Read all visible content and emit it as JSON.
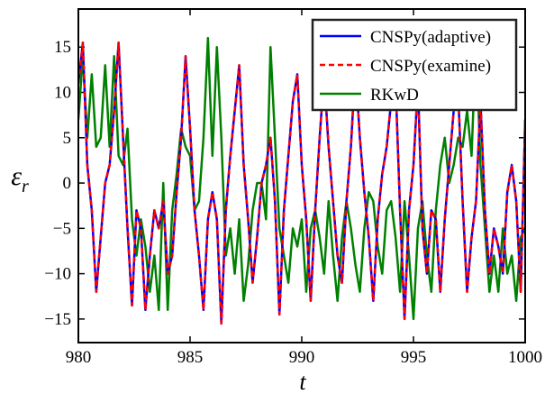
{
  "chart_data": {
    "type": "line",
    "xlabel": "t",
    "ylabel": "ε",
    "ylabel_sub": "r",
    "x": [
      980,
      980.2,
      980.4,
      980.6,
      980.8,
      981,
      981.2,
      981.4,
      981.6,
      981.8,
      982,
      982.2,
      982.4,
      982.6,
      982.8,
      983,
      983.2,
      983.4,
      983.6,
      983.8,
      984,
      984.2,
      984.4,
      984.6,
      984.8,
      985,
      985.2,
      985.4,
      985.6,
      985.8,
      986,
      986.2,
      986.4,
      986.6,
      986.8,
      987,
      987.2,
      987.4,
      987.6,
      987.8,
      988,
      988.2,
      988.4,
      988.6,
      988.8,
      989,
      989.2,
      989.4,
      989.6,
      989.8,
      990,
      990.2,
      990.4,
      990.6,
      990.8,
      991,
      991.2,
      991.4,
      991.6,
      991.8,
      992,
      992.2,
      992.4,
      992.6,
      992.8,
      993,
      993.2,
      993.4,
      993.6,
      993.8,
      994,
      994.2,
      994.4,
      994.6,
      994.8,
      995,
      995.2,
      995.4,
      995.6,
      995.8,
      996,
      996.2,
      996.4,
      996.6,
      996.8,
      997,
      997.2,
      997.4,
      997.6,
      997.8,
      998,
      998.2,
      998.4,
      998.6,
      998.8,
      999,
      999.2,
      999.4,
      999.6,
      999.8,
      1000
    ],
    "series": [
      {
        "name": "CNSPy(adaptive)",
        "color": "#0000ff",
        "dash": "none",
        "values": [
          11,
          15.5,
          2,
          -3,
          -12,
          -6,
          0,
          2,
          8,
          15.5,
          5,
          -5,
          -13.5,
          -3,
          -5,
          -14,
          -8,
          -3,
          -5,
          -2,
          -10,
          -8,
          -1,
          5,
          14,
          6,
          -3,
          -8,
          -14,
          -4,
          -1,
          -4,
          -15.5,
          -3,
          3,
          8,
          13,
          2,
          -4,
          -11,
          -6,
          0,
          2,
          5,
          -2,
          -14.5,
          -3,
          3,
          9,
          12,
          2,
          -4,
          -13,
          -3,
          5,
          12,
          4,
          -2,
          -8,
          -11,
          -2,
          4,
          13,
          5,
          -1,
          -6,
          -13,
          -4,
          1,
          4,
          9,
          11,
          -3,
          -15,
          -3,
          2,
          11,
          -5,
          -10,
          -3,
          -4,
          -12,
          -4,
          2,
          8,
          10,
          -2,
          -12,
          -6,
          -2,
          9,
          -3,
          -10,
          -5,
          -7,
          -10,
          -1,
          2,
          -2,
          -12,
          7
        ]
      },
      {
        "name": "CNSPy(examine)",
        "color": "#ff0000",
        "dash": "6,4",
        "values": [
          11,
          15.5,
          2,
          -3,
          -12,
          -6,
          0,
          2,
          8,
          15.5,
          5,
          -5,
          -13.5,
          -3,
          -5,
          -14,
          -8,
          -3,
          -5,
          -2,
          -10,
          -8,
          -1,
          5,
          14,
          6,
          -3,
          -8,
          -14,
          -4,
          -1,
          -4,
          -15.5,
          -3,
          3,
          8,
          13,
          2,
          -4,
          -11,
          -6,
          0,
          2,
          5,
          -2,
          -14.5,
          -3,
          3,
          9,
          12,
          2,
          -4,
          -13,
          -3,
          5,
          12,
          4,
          -2,
          -8,
          -11,
          -2,
          4,
          13,
          5,
          -1,
          -6,
          -13,
          -4,
          1,
          4,
          9,
          11,
          -3,
          -15,
          -3,
          2,
          11,
          -5,
          -10,
          -3,
          -4,
          -12,
          -4,
          2,
          8,
          10,
          -2,
          -12,
          -6,
          -2,
          9,
          -3,
          -10,
          -5,
          -7,
          -10,
          -1,
          2,
          -2,
          -12,
          7
        ]
      },
      {
        "name": "RKwD",
        "color": "#008000",
        "dash": "none",
        "values": [
          7,
          14,
          5,
          12,
          4,
          5,
          13,
          4,
          14,
          3,
          2,
          6,
          -4,
          -8,
          -4,
          -7,
          -12,
          -8,
          -14,
          0,
          -14,
          -3,
          1,
          6,
          4,
          3,
          -3,
          -2,
          5,
          16,
          3,
          15,
          5,
          -8,
          -5,
          -10,
          -4,
          -13,
          -9,
          -3,
          0,
          0,
          -4,
          15,
          5,
          -5,
          -8,
          -11,
          -5,
          -7,
          -4,
          -12,
          -5,
          -3,
          -6,
          -10,
          -2,
          -8,
          -13,
          -6,
          -2,
          -5,
          -9,
          -12,
          -5,
          -1,
          -2,
          -7,
          -10,
          -3,
          -2,
          -6,
          -12,
          -2,
          -8,
          -15,
          -5,
          -2,
          -8,
          -12,
          -3,
          2,
          5,
          0,
          2,
          5,
          4,
          8,
          3,
          16,
          2,
          -5,
          -12,
          -8,
          -12,
          -5,
          -10,
          -8,
          -13,
          -6,
          -5
        ]
      }
    ],
    "xlim": [
      980,
      1000
    ],
    "xticks": [
      980,
      985,
      990,
      995,
      1000
    ],
    "ylim": [
      -17.6,
      19.2
    ],
    "yticks": [
      {
        "value": -15,
        "label": "−15"
      },
      {
        "value": -10,
        "label": "−10"
      },
      {
        "value": -5,
        "label": "−5"
      },
      0,
      5,
      10,
      15
    ],
    "legend": "upper right",
    "grid": false
  }
}
